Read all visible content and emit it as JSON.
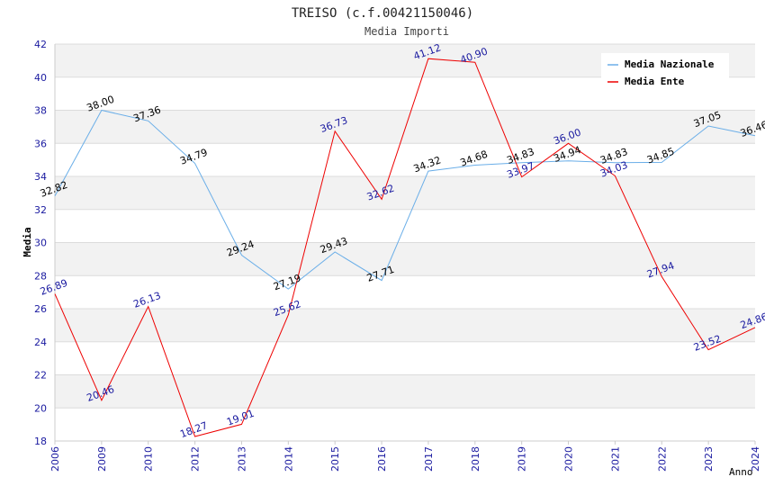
{
  "chart_data": {
    "type": "line",
    "title": "TREISO (c.f.00421150046)",
    "subtitle": "Media Importi",
    "xlabel": "Anno",
    "ylabel": "Media",
    "ylim": [
      18,
      42
    ],
    "yticks": [
      18,
      20,
      22,
      24,
      26,
      28,
      30,
      32,
      34,
      36,
      38,
      40,
      42
    ],
    "categories": [
      "2006",
      "2009",
      "2010",
      "2012",
      "2013",
      "2014",
      "2015",
      "2016",
      "2017",
      "2018",
      "2019",
      "2020",
      "2021",
      "2022",
      "2023",
      "2024"
    ],
    "grid": true,
    "legend_position": "top-right",
    "series": [
      {
        "name": "Media Nazionale",
        "color": "#6aaee8",
        "label_color": "#000000",
        "values": [
          32.82,
          38.0,
          37.36,
          34.79,
          29.24,
          27.19,
          29.43,
          27.71,
          34.32,
          34.68,
          34.83,
          34.94,
          34.83,
          34.85,
          37.05,
          36.46
        ],
        "labels": [
          "32.82",
          "38.00",
          "37.36",
          "34.79",
          "29.24",
          "27.19",
          "29.43",
          "27.71",
          "34.32",
          "34.68",
          "34.83",
          "34.94",
          "34.83",
          "34.85",
          "37.05",
          "36.46"
        ]
      },
      {
        "name": "Media Ente",
        "color": "#ee0000",
        "label_color": "#1a1aa0",
        "values": [
          26.89,
          20.46,
          26.13,
          18.27,
          19.01,
          25.62,
          36.73,
          32.62,
          41.12,
          40.9,
          33.97,
          36.0,
          34.03,
          27.94,
          23.52,
          24.86
        ],
        "labels": [
          "26.89",
          "20.46",
          "26.13",
          "18.27",
          "19.01",
          "25.62",
          "36.73",
          "32.62",
          "41.12",
          "40.90",
          "33.97",
          "36.00",
          "34.03",
          "27.94",
          "23.52",
          "24.86"
        ]
      }
    ]
  }
}
